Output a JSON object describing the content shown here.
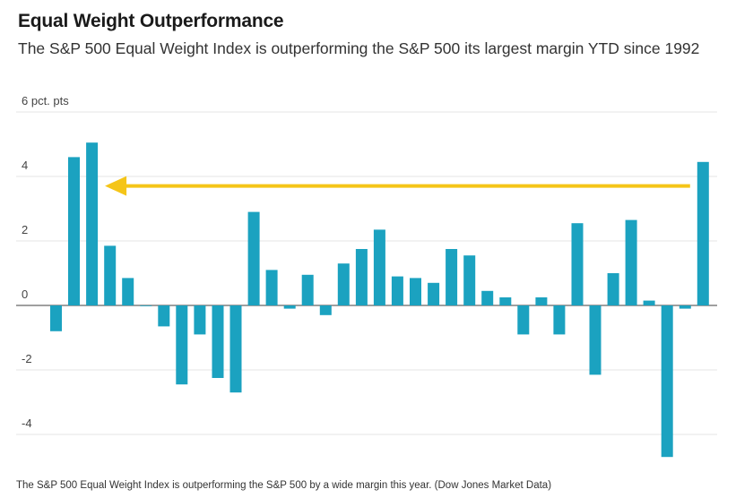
{
  "title": "Equal Weight Outperformance",
  "subtitle": "The S&P 500 Equal Weight Index is outperforming the S&P 500 its largest margin YTD since 1992",
  "caption": "The S&P 500 Equal Weight Index is outperforming the S&P 500 by a wide margin this year. (Dow Jones Market Data)",
  "colors": {
    "bar": "#1ba2c0",
    "arrow": "#f5c518",
    "grid": "#e6e6e6",
    "zero": "#666666"
  },
  "chart_data": {
    "type": "bar",
    "title": "Equal Weight Outperformance",
    "ylabel": "",
    "ylim": [
      -5,
      6
    ],
    "yticks": [
      {
        "value": 6,
        "label": "6 pct. pts"
      },
      {
        "value": 4,
        "label": "4"
      },
      {
        "value": 2,
        "label": "2"
      },
      {
        "value": 0,
        "label": "0"
      },
      {
        "value": -2,
        "label": "-2"
      },
      {
        "value": -4,
        "label": "-4"
      }
    ],
    "grid": true,
    "values": [
      -0.8,
      4.6,
      5.05,
      1.85,
      0.85,
      0,
      -0.65,
      -2.45,
      -0.9,
      -2.25,
      -2.7,
      2.9,
      1.1,
      -0.1,
      0.95,
      -0.3,
      1.3,
      1.75,
      2.35,
      0.9,
      0.85,
      0.7,
      1.75,
      1.55,
      0.45,
      0.25,
      -0.9,
      0.25,
      -0.9,
      2.55,
      -2.15,
      1.0,
      2.65,
      0.15,
      -4.7,
      -0.1,
      4.45
    ],
    "annotations": [
      {
        "type": "arrow",
        "from_index": 36,
        "to_index": 2,
        "value": 4.4
      }
    ]
  }
}
